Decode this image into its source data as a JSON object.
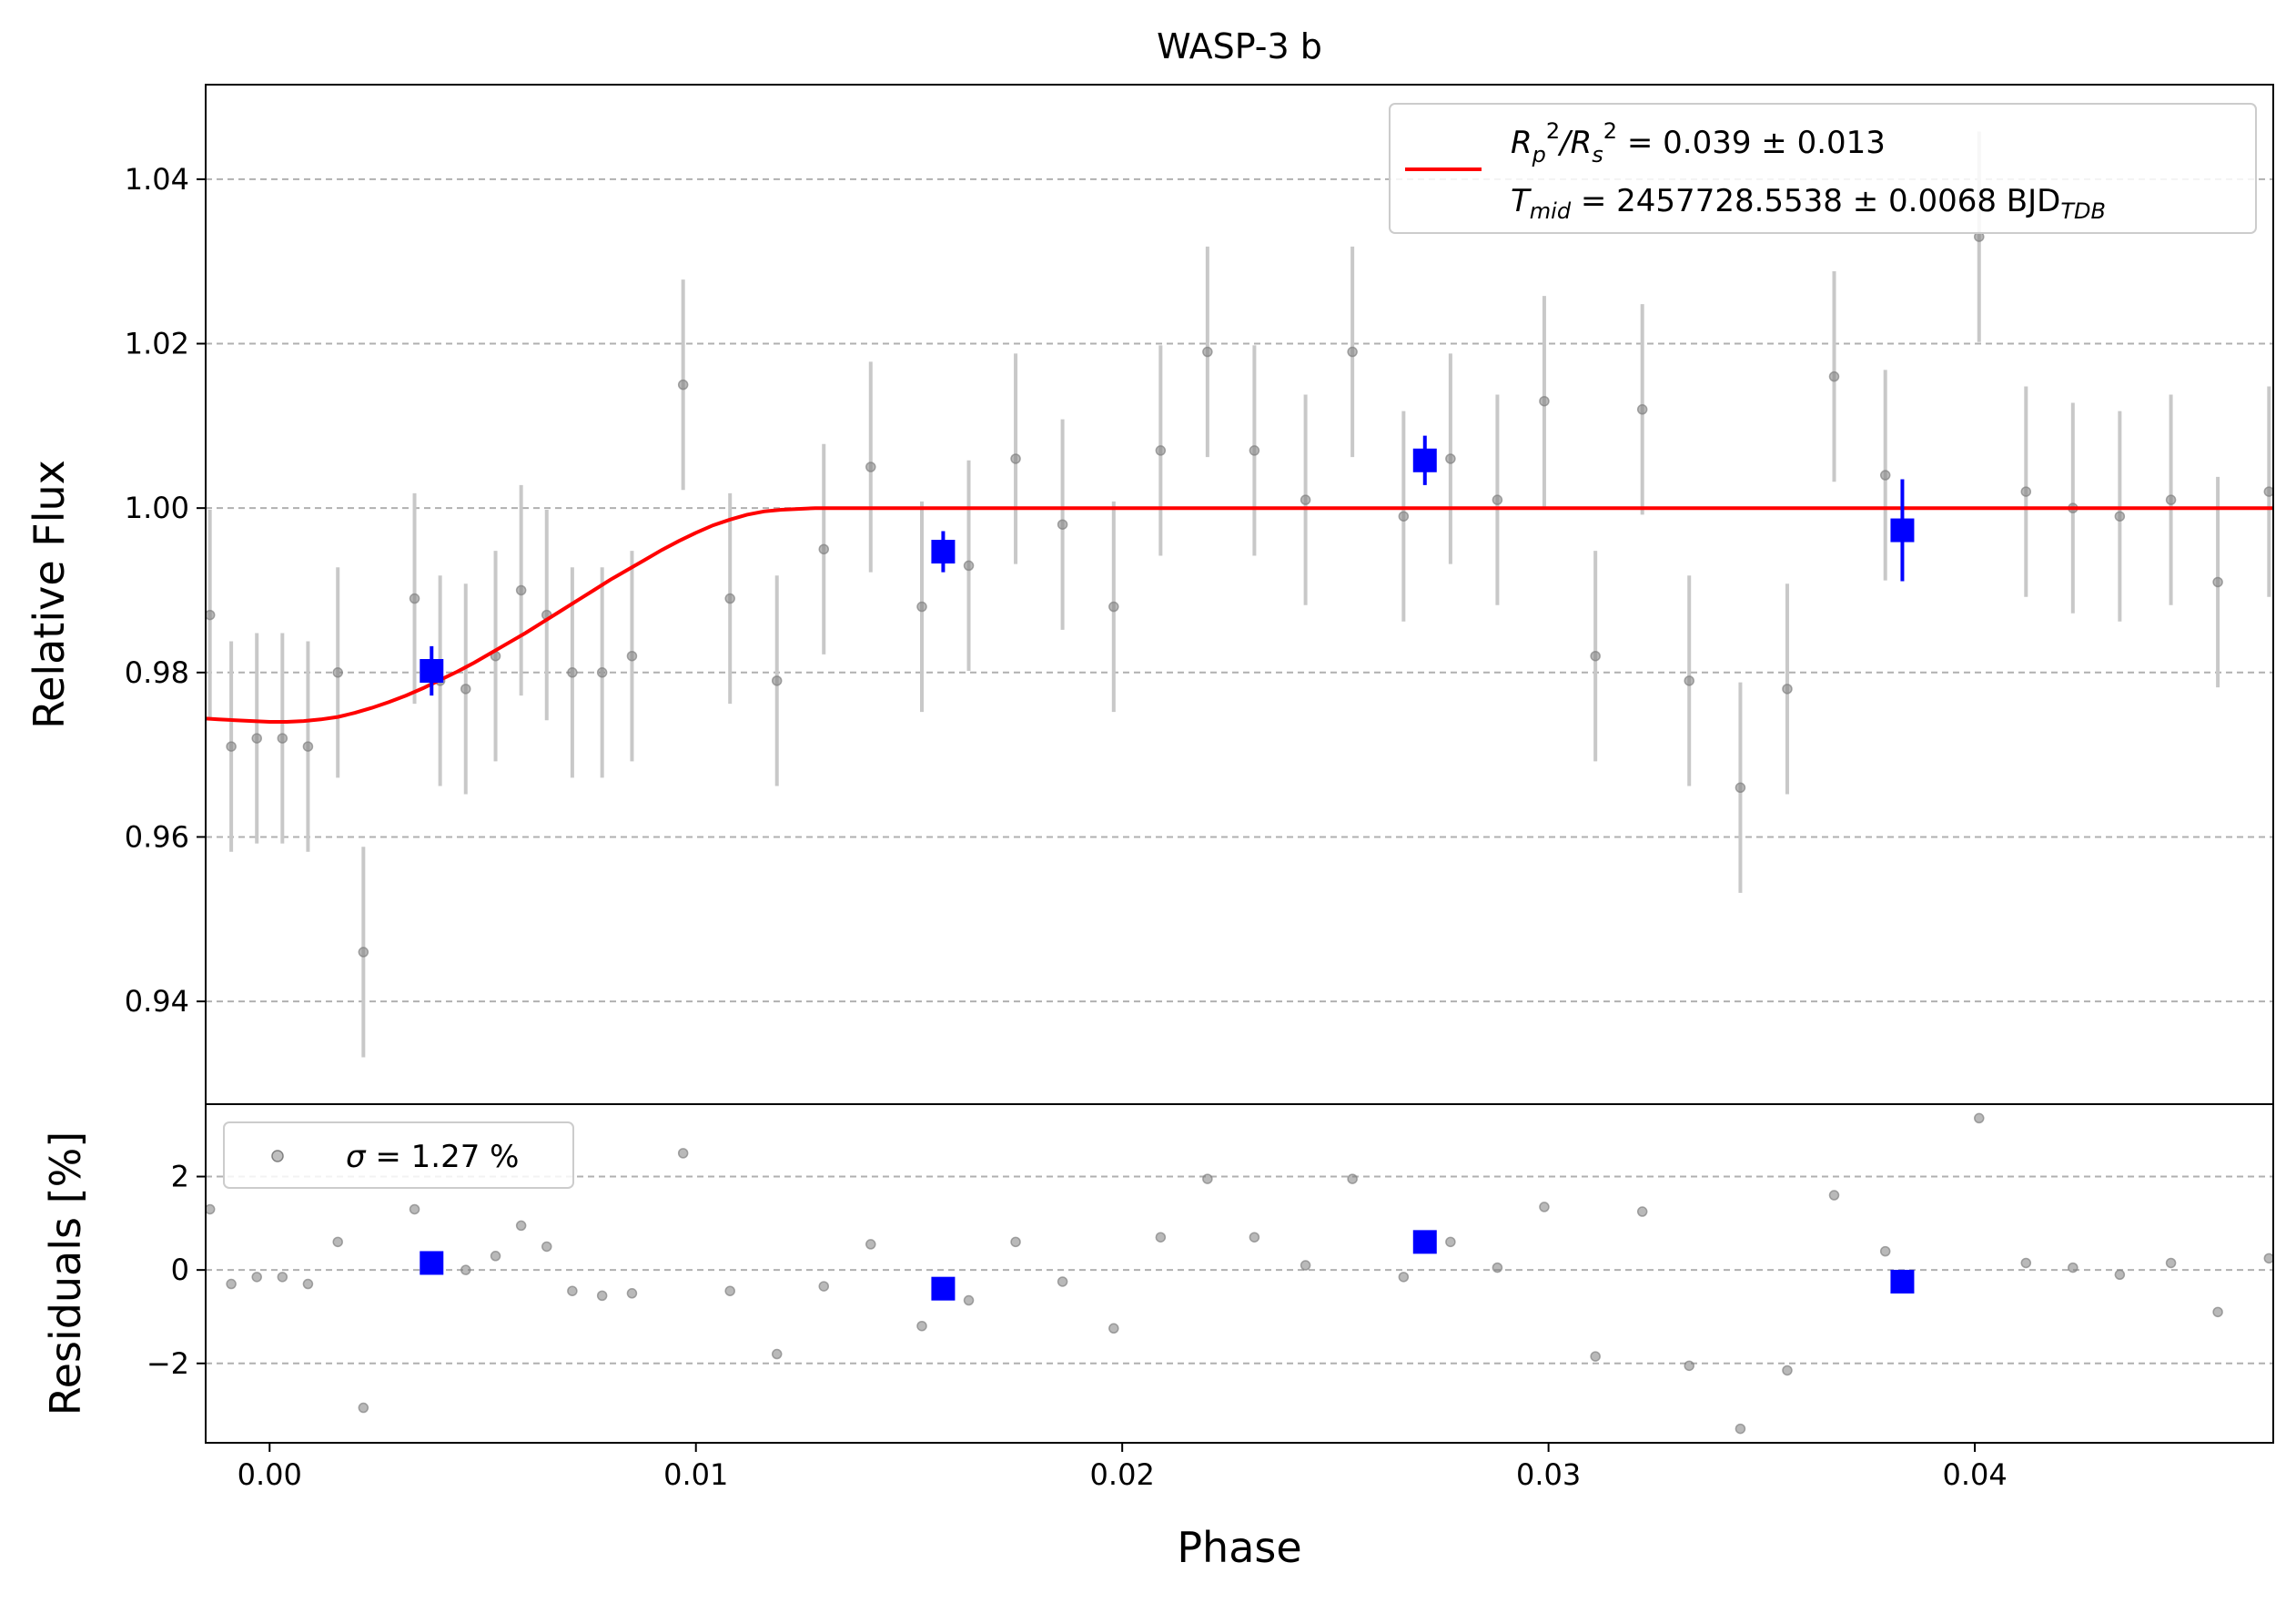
{
  "chart_data": [
    {
      "type": "scatter",
      "panel": "light-curve",
      "title": "WASP-3 b",
      "xlabel": "",
      "ylabel": "Relative Flux",
      "xlim": [
        -0.0015,
        0.047
      ],
      "ylim": [
        0.9275,
        1.0515
      ],
      "yticks": [
        "0.94",
        "0.96",
        "0.98",
        "1.00",
        "1.02",
        "1.04"
      ],
      "grid": "horizontal-dashed",
      "legend_position": "top-right",
      "legend": {
        "model_label": "R_p^2/R_s^2 = 0.039 ± 0.013",
        "model_label_parts": [
          "R",
          "p",
          "2",
          "/R",
          "s",
          "2",
          " = 0.039 ± 0.013"
        ],
        "tmid_label": "T_mid = 2457728.5538 ± 0.0068 BJD_TDB",
        "tmid_label_parts": [
          "T",
          "mid",
          " = 2457728.5538 ± 0.0068 BJD",
          "TDB"
        ]
      },
      "colors": {
        "data": "#808080",
        "errorbar": "#c8c8c8",
        "binned": "#0000ff",
        "model": "#ff0000",
        "grid": "#b0b0b0"
      },
      "series": [
        {
          "kind": "data",
          "x": [
            -0.0014,
            -0.0009,
            -0.0003,
            0.0003,
            0.0009,
            0.0016,
            0.0022,
            0.0034,
            0.004,
            0.0046,
            0.0053,
            0.0059,
            0.0065,
            0.0071,
            0.0078,
            0.0085,
            0.0097,
            0.0108,
            0.0119,
            0.013,
            0.0141,
            0.0153,
            0.0164,
            0.0175,
            0.0186,
            0.0198,
            0.0209,
            0.022,
            0.0231,
            0.0243,
            0.0254,
            0.0266,
            0.0277,
            0.0288,
            0.0299,
            0.0311,
            0.0322,
            0.0333,
            0.0345,
            0.0356,
            0.0367,
            0.0379,
            0.0401,
            0.0412,
            0.0423,
            0.0434,
            0.0446,
            0.0457,
            0.0469
          ],
          "y": [
            0.987,
            0.971,
            0.972,
            0.972,
            0.971,
            0.98,
            0.946,
            0.989,
            0.979,
            0.978,
            0.982,
            0.99,
            0.987,
            0.98,
            0.98,
            0.982,
            1.015,
            0.989,
            0.979,
            0.995,
            1.005,
            0.988,
            0.993,
            1.006,
            0.998,
            0.988,
            1.007,
            1.019,
            1.007,
            1.001,
            1.019,
            0.999,
            1.006,
            1.001,
            1.013,
            0.982,
            1.012,
            0.979,
            0.966,
            0.978,
            1.016,
            1.004,
            1.033,
            1.002,
            1.0,
            0.999,
            1.001,
            0.991,
            1.002
          ],
          "yerr": 0.0128
        },
        {
          "kind": "binned",
          "x": [
            0.0038,
            0.0158,
            0.0271,
            0.0383
          ],
          "y": [
            0.9802,
            0.9947,
            1.0058,
            0.9973
          ],
          "yerr": [
            0.003,
            0.0025,
            0.003,
            0.0062
          ]
        },
        {
          "kind": "model",
          "x": [
            -0.0015,
            -0.0012,
            -0.0008,
            -0.0004,
            0.0,
            0.0004,
            0.0008,
            0.0012,
            0.0016,
            0.002,
            0.0024,
            0.0028,
            0.0032,
            0.0036,
            0.004,
            0.0044,
            0.0048,
            0.0052,
            0.0056,
            0.006,
            0.0064,
            0.0068,
            0.0072,
            0.0076,
            0.008,
            0.0084,
            0.0088,
            0.0092,
            0.0096,
            0.01,
            0.0104,
            0.0108,
            0.0112,
            0.0116,
            0.012,
            0.0124,
            0.0128,
            0.0132,
            0.0136,
            0.014,
            0.0143,
            0.047
          ],
          "y": [
            0.9744,
            0.9743,
            0.9742,
            0.9741,
            0.974,
            0.974,
            0.9741,
            0.9743,
            0.9746,
            0.9751,
            0.9757,
            0.9764,
            0.9772,
            0.9781,
            0.9791,
            0.9801,
            0.9812,
            0.9824,
            0.9836,
            0.9848,
            0.9861,
            0.9874,
            0.9887,
            0.99,
            0.9913,
            0.9925,
            0.9937,
            0.9949,
            0.996,
            0.997,
            0.9979,
            0.9986,
            0.9992,
            0.9996,
            0.9998,
            0.9999,
            1.0,
            1.0,
            1.0,
            1.0,
            1.0,
            1.0
          ]
        }
      ]
    },
    {
      "type": "scatter",
      "panel": "residuals",
      "xlabel": "Phase",
      "ylabel": "Residuals [%]",
      "xlim": [
        -0.0015,
        0.047
      ],
      "ylim": [
        -3.7,
        3.55
      ],
      "xticks": [
        "0.00",
        "0.01",
        "0.02",
        "0.03",
        "0.04"
      ],
      "yticks": [
        "−2",
        "0",
        "2"
      ],
      "grid": "horizontal-dashed",
      "legend_position": "top-left",
      "legend": {
        "label": "σ = 1.27 %",
        "label_parts": [
          "σ",
          " = 1.27 %"
        ]
      },
      "series": [
        {
          "kind": "data",
          "x": [
            -0.0014,
            -0.0009,
            -0.0003,
            0.0003,
            0.0009,
            0.0016,
            0.0022,
            0.0034,
            0.0046,
            0.0053,
            0.0059,
            0.0065,
            0.0071,
            0.0078,
            0.0085,
            0.0097,
            0.0108,
            0.0119,
            0.013,
            0.0141,
            0.0153,
            0.0164,
            0.0175,
            0.0186,
            0.0198,
            0.0209,
            0.022,
            0.0231,
            0.0243,
            0.0254,
            0.0266,
            0.0277,
            0.0288,
            0.0299,
            0.0311,
            0.0322,
            0.0333,
            0.0345,
            0.0356,
            0.0367,
            0.0379,
            0.0401,
            0.0412,
            0.0423,
            0.0434,
            0.0446,
            0.0457,
            0.0469
          ],
          "y": [
            1.3,
            -0.3,
            -0.15,
            -0.15,
            -0.3,
            0.6,
            -2.95,
            1.3,
            0.0,
            0.3,
            0.95,
            0.5,
            -0.45,
            -0.55,
            -0.5,
            2.5,
            -0.45,
            -1.8,
            -0.35,
            0.55,
            -1.2,
            -0.65,
            0.6,
            -0.25,
            -1.25,
            0.7,
            1.95,
            0.7,
            0.1,
            1.95,
            -0.15,
            0.6,
            0.05,
            1.35,
            -1.85,
            1.25,
            -2.05,
            -3.4,
            -2.15,
            1.6,
            0.4,
            3.25,
            0.15,
            0.05,
            -0.1,
            0.15,
            -0.9,
            0.25
          ]
        },
        {
          "kind": "binned",
          "x": [
            0.0038,
            0.0158,
            0.0271,
            0.0383
          ],
          "y": [
            0.15,
            -0.4,
            0.6,
            -0.25
          ]
        }
      ]
    }
  ]
}
